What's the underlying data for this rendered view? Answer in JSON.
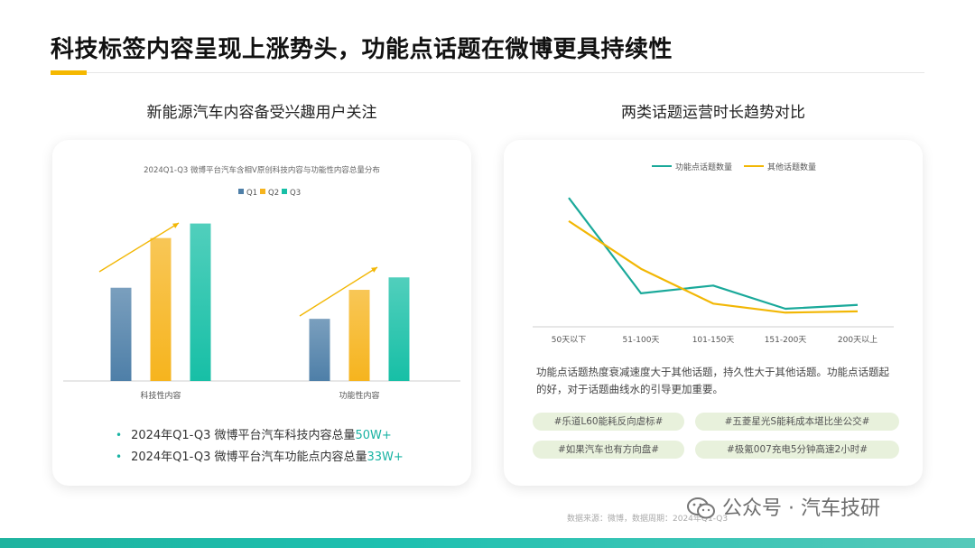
{
  "title": "科技标签内容呈现上涨势头，功能点话题在微博更具持续性",
  "left": {
    "section_title": "新能源汽车内容备受兴趣用户关注",
    "bullets": [
      {
        "text": "2024年Q1-Q3 微博平台汽车科技内容总量",
        "highlight": "50W+"
      },
      {
        "text": "2024年Q1-Q3 微博平台汽车功能点内容总量",
        "highlight": "33W+"
      }
    ]
  },
  "right": {
    "section_title": "两类话题运营时长趋势对比",
    "description": "功能点话题热度衰减速度大于其他话题，持久性大于其他话题。功能点话题起的好，对于话题曲线水的引导更加重要。",
    "tags": [
      "#乐道L60能耗反向虐标#",
      "#五菱星光S能耗成本堪比坐公交#",
      "#如果汽车也有方向盘#",
      "#极氪007充电5分钟高速2小时#"
    ]
  },
  "footer": {
    "source": "数据来源：微博，数据周期：2024年Q1-Q3"
  },
  "watermark": "公众号 · 汽车技研",
  "colors": {
    "q1": "#4e7fa8",
    "q2": "#f6b41e",
    "q3": "#17bfa6",
    "line_function": "#1aa99a",
    "line_other": "#f2b705",
    "accent": "#19b3a3"
  },
  "chart_data": [
    {
      "type": "bar",
      "title": "2024Q1-Q3 微博平台汽车含相V原创科技内容与功能性内容总量分布",
      "categories": [
        "科技性内容",
        "功能性内容"
      ],
      "series": [
        {
          "name": "Q1",
          "values": [
            45,
            30
          ]
        },
        {
          "name": "Q2",
          "values": [
            69,
            44
          ]
        },
        {
          "name": "Q3",
          "values": [
            76,
            50
          ]
        }
      ],
      "ylim": [
        0,
        100
      ],
      "legend": "top-center",
      "grid": false
    },
    {
      "type": "line",
      "categories": [
        "50天以下",
        "51-100天",
        "101-150天",
        "151-200天",
        "200天以上"
      ],
      "series": [
        {
          "name": "功能点话题数量",
          "values": [
            100,
            26,
            32,
            14,
            17
          ]
        },
        {
          "name": "其他话题数量",
          "values": [
            82,
            45,
            18,
            11,
            12
          ]
        }
      ],
      "ylim": [
        0,
        105
      ],
      "legend": "top-center",
      "grid": false
    }
  ]
}
